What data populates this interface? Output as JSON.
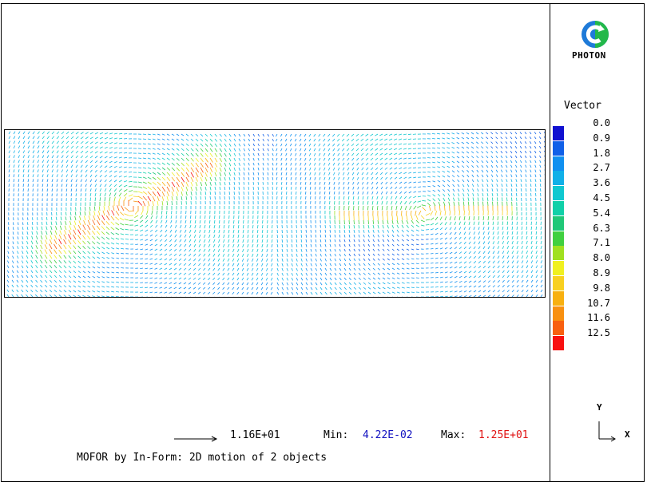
{
  "logo": {
    "text": "PHOTON",
    "icon": "photon-logo-icon"
  },
  "legend": {
    "title": "Vector",
    "entries": [
      {
        "label": "0.0",
        "color": "#1010d0"
      },
      {
        "label": "0.9",
        "color": "#1060e8"
      },
      {
        "label": "1.8",
        "color": "#1090f0"
      },
      {
        "label": "2.7",
        "color": "#10b0e8"
      },
      {
        "label": "3.6",
        "color": "#10c8d0"
      },
      {
        "label": "4.5",
        "color": "#10d0a8"
      },
      {
        "label": "5.4",
        "color": "#20c878"
      },
      {
        "label": "6.3",
        "color": "#40d040"
      },
      {
        "label": "7.1",
        "color": "#a0e020"
      },
      {
        "label": "8.0",
        "color": "#f0f020"
      },
      {
        "label": "8.9",
        "color": "#f8d020"
      },
      {
        "label": "9.8",
        "color": "#f8b010"
      },
      {
        "label": "10.7",
        "color": "#f89010"
      },
      {
        "label": "11.6",
        "color": "#f86010"
      },
      {
        "label": "12.5",
        "color": "#f81010"
      }
    ]
  },
  "axes": {
    "y_label": "Y",
    "x_label": "X"
  },
  "footer": {
    "reference_value": "1.16E+01",
    "min_label": "Min:",
    "min_value": "4.22E-02",
    "min_color": "#1010c0",
    "max_label": "Max:",
    "max_value": "1.25E+01",
    "max_color": "#e01010"
  },
  "caption": "MOFOR by In-Form: 2D motion of 2 objects"
}
